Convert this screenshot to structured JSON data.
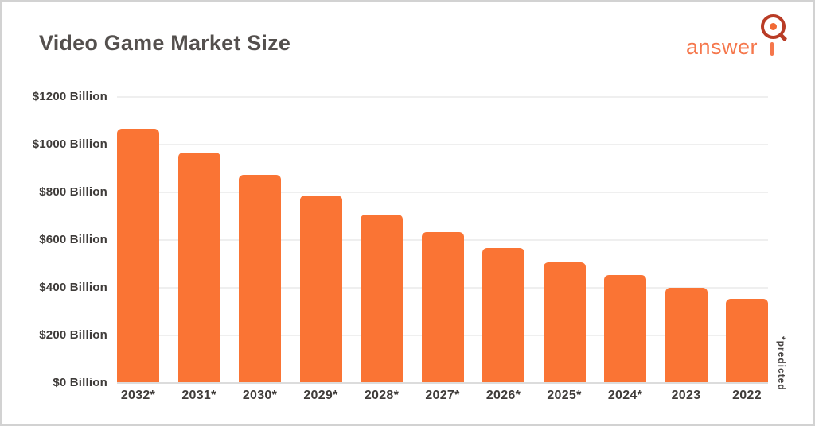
{
  "header": {
    "logo_text": "answer"
  },
  "footnote": {
    "predicted_label": "*predicted"
  },
  "colors": {
    "bar": "#fa7434",
    "logo_text": "#f5774c",
    "logo_ring": "#b93c26",
    "logo_dot": "#f16a35",
    "title_text": "#54504e",
    "axis_text": "#3f3c3a",
    "gridline": "#efefef",
    "frame_border": "#d2d2d2"
  },
  "chart_data": {
    "type": "bar",
    "title": "Video Game Market Size",
    "note": "*predicted",
    "unit": "$ Billion",
    "categories": [
      "2032*",
      "2031*",
      "2030*",
      "2029*",
      "2028*",
      "2027*",
      "2026*",
      "2025*",
      "2024*",
      "2023",
      "2022"
    ],
    "values": [
      1063,
      963,
      870,
      783,
      703,
      630,
      563,
      502,
      449,
      397,
      350
    ],
    "bar_color": "#fa7434",
    "xlabel": "",
    "ylabel": "",
    "ylim": [
      0,
      1200
    ],
    "grid": true,
    "legend": false,
    "yticks": [
      {
        "value": 1200,
        "label": "$1200 Billion"
      },
      {
        "value": 1000,
        "label": "$1000 Billion"
      },
      {
        "value": 800,
        "label": "$800 Billion"
      },
      {
        "value": 600,
        "label": "$600 Billion"
      },
      {
        "value": 400,
        "label": "$400 Billion"
      },
      {
        "value": 200,
        "label": "$200 Billion"
      },
      {
        "value": 0,
        "label": "$0 Billion"
      }
    ]
  }
}
